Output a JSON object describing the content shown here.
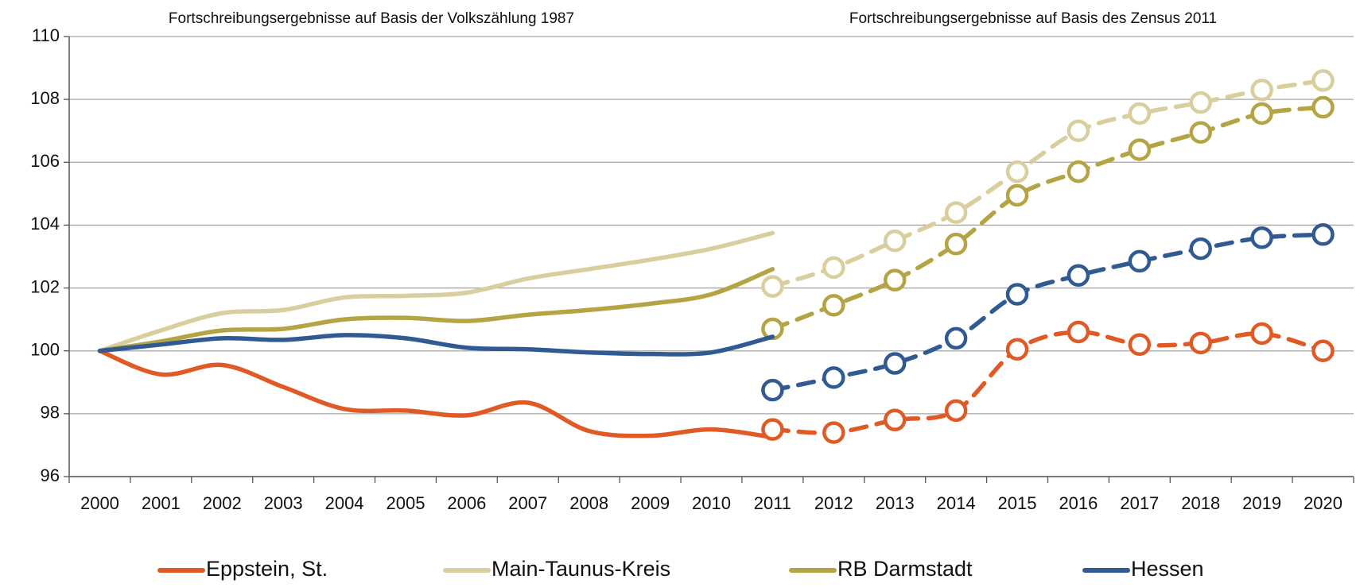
{
  "chart_data": {
    "type": "line",
    "annotations": [
      "Fortschreibungsergebnisse auf Basis der Volkszählung 1987",
      "Fortschreibungsergebnisse auf Basis des Zensus 2011"
    ],
    "categories": [
      "2000",
      "2001",
      "2002",
      "2003",
      "2004",
      "2005",
      "2006",
      "2007",
      "2008",
      "2009",
      "2010",
      "2011",
      "2012",
      "2013",
      "2014",
      "2015",
      "2016",
      "2017",
      "2018",
      "2019",
      "2020"
    ],
    "series": [
      {
        "name": "Eppstein, St.",
        "color": "#e05a26",
        "values": [
          100,
          99.25,
          99.55,
          98.85,
          98.15,
          98.1,
          97.95,
          98.35,
          97.45,
          97.3,
          97.5,
          97.25,
          null,
          null,
          null,
          null,
          null,
          null,
          null,
          null,
          null
        ],
        "values_2011": [
          null,
          null,
          null,
          null,
          null,
          null,
          null,
          null,
          null,
          null,
          null,
          97.5,
          97.4,
          97.8,
          98.1,
          100.05,
          100.6,
          100.2,
          100.25,
          100.55,
          100.0
        ]
      },
      {
        "name": "Main-Taunus-Kreis",
        "color": "#d9cf9e",
        "values": [
          100,
          100.65,
          101.2,
          101.3,
          101.7,
          101.75,
          101.85,
          102.3,
          102.6,
          102.9,
          103.25,
          103.75,
          null,
          null,
          null,
          null,
          null,
          null,
          null,
          null,
          null
        ],
        "values_2011": [
          null,
          null,
          null,
          null,
          null,
          null,
          null,
          null,
          null,
          null,
          null,
          102.05,
          102.65,
          103.5,
          104.4,
          105.7,
          107.0,
          107.55,
          107.9,
          108.3,
          108.6
        ]
      },
      {
        "name": "RB Darmstadt",
        "color": "#b5a444",
        "values": [
          100,
          100.3,
          100.65,
          100.7,
          101.0,
          101.05,
          100.95,
          101.15,
          101.3,
          101.5,
          101.8,
          102.6,
          null,
          null,
          null,
          null,
          null,
          null,
          null,
          null,
          null
        ],
        "values_2011": [
          null,
          null,
          null,
          null,
          null,
          null,
          null,
          null,
          null,
          null,
          null,
          100.7,
          101.45,
          102.25,
          103.4,
          104.95,
          105.7,
          106.4,
          106.95,
          107.55,
          107.75
        ]
      },
      {
        "name": "Hessen",
        "color": "#2f5b92",
        "values": [
          100,
          100.2,
          100.4,
          100.35,
          100.5,
          100.4,
          100.1,
          100.05,
          99.95,
          99.9,
          99.95,
          100.45,
          null,
          null,
          null,
          null,
          null,
          null,
          null,
          null,
          null
        ],
        "values_2011": [
          null,
          null,
          null,
          null,
          null,
          null,
          null,
          null,
          null,
          null,
          null,
          98.75,
          99.15,
          99.6,
          100.4,
          101.8,
          102.4,
          102.85,
          103.25,
          103.6,
          103.7
        ]
      }
    ],
    "ylim": [
      96,
      110
    ],
    "yticks": [
      96,
      98,
      100,
      102,
      104,
      106,
      108,
      110
    ],
    "grid": true,
    "legend": "bottom"
  }
}
